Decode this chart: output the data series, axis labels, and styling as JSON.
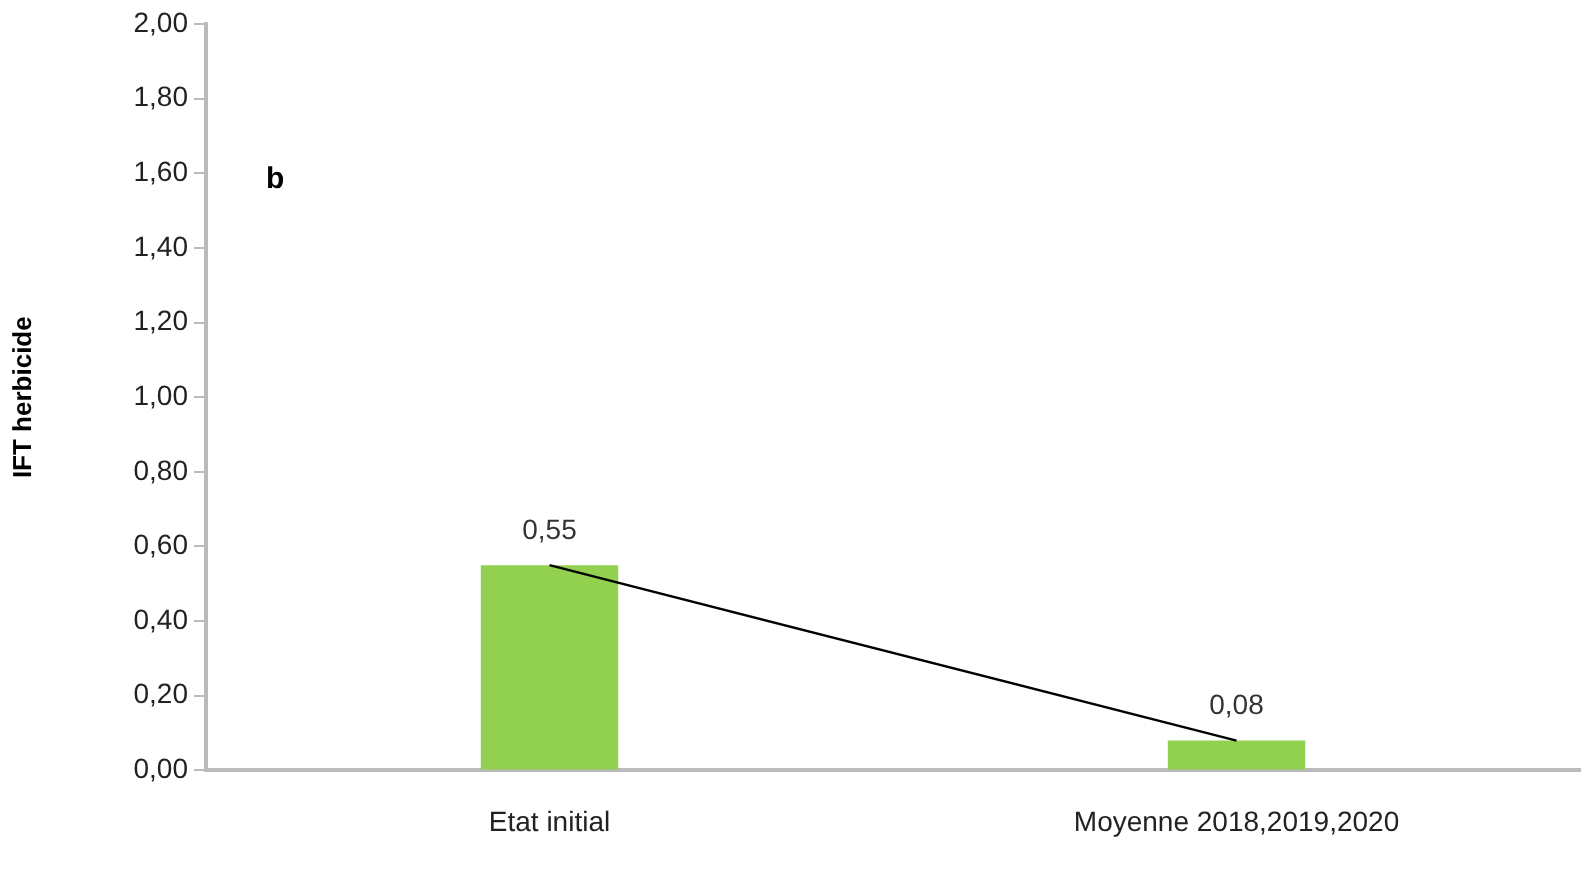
{
  "chart_data": {
    "type": "bar",
    "ylabel": "IFT herbicide",
    "annotations": [
      "b"
    ],
    "categories": [
      "Etat initial",
      "Moyenne 2018,2019,2020"
    ],
    "series": [
      {
        "color": "#92d050",
        "values": [
          0.55,
          0.08
        ],
        "value_labels": [
          "0,55",
          "0,08"
        ]
      },
      {
        "type": "line",
        "color": "#000000",
        "values": [
          0.55,
          0.08
        ]
      }
    ],
    "ylim": [
      0,
      2
    ],
    "yticks": [
      {
        "value": 0,
        "label": "0,00"
      },
      {
        "value": 0.2,
        "label": "0,20"
      },
      {
        "value": 0.4,
        "label": "0,40"
      },
      {
        "value": 0.6,
        "label": "0,60"
      },
      {
        "value": 0.8,
        "label": "0,80"
      },
      {
        "value": 1,
        "label": "1,00"
      },
      {
        "value": 1.2,
        "label": "1,20"
      },
      {
        "value": 1.4,
        "label": "1,40"
      },
      {
        "value": 1.6,
        "label": "1,60"
      },
      {
        "value": 1.8,
        "label": "1,80"
      },
      {
        "value": 2,
        "label": "2,00"
      }
    ],
    "grid": false,
    "legend": false,
    "marker": "none",
    "line_style": "solid"
  }
}
